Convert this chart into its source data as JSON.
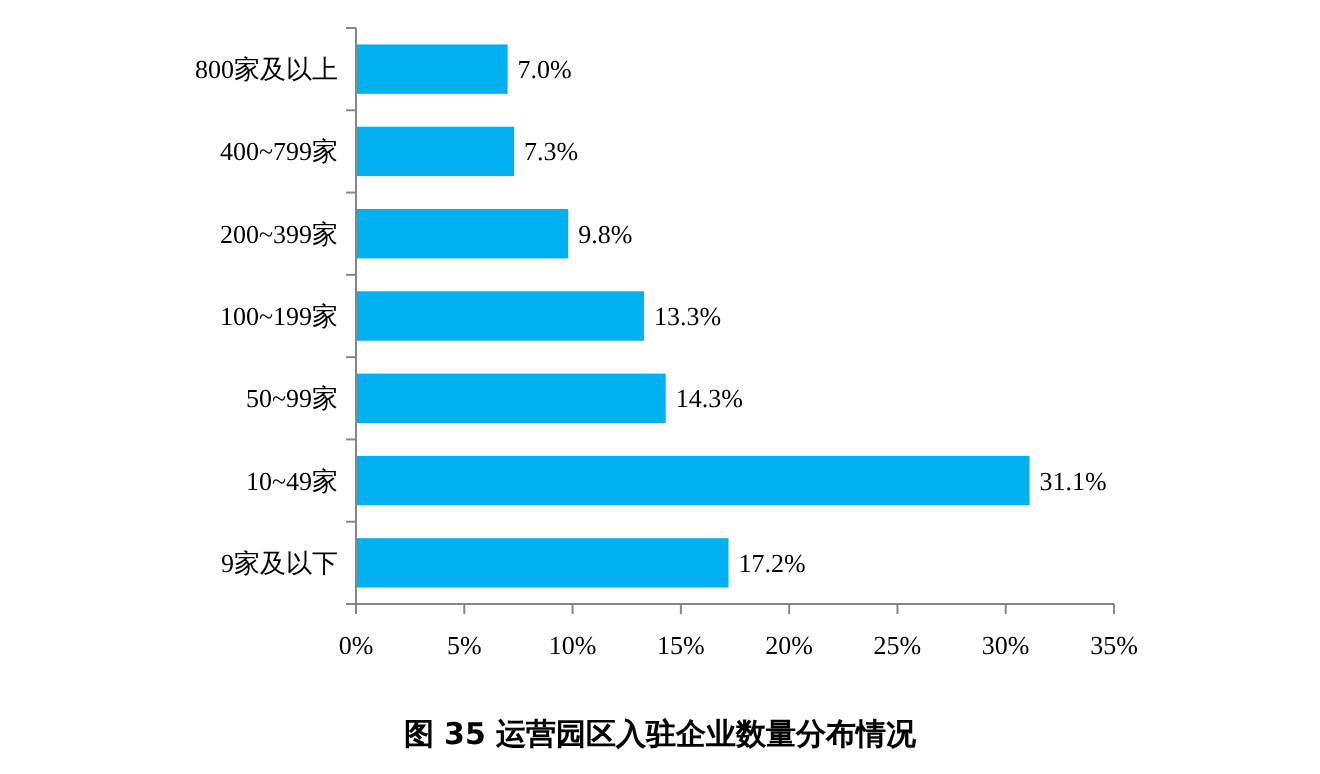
{
  "chart_data": {
    "type": "bar",
    "orientation": "horizontal",
    "title": "图 35 运营园区入驻企业数量分布情况",
    "categories": [
      "800家及以上",
      "400~799家",
      "200~399家",
      "100~199家",
      "50~99家",
      "10~49家",
      "9家及以下"
    ],
    "values": [
      7.0,
      7.3,
      9.8,
      13.3,
      14.3,
      31.1,
      17.2
    ],
    "value_labels": [
      "7.0%",
      "7.3%",
      "9.8%",
      "13.3%",
      "14.3%",
      "31.1%",
      "17.2%"
    ],
    "color": "#00b0f0",
    "xlim": [
      0,
      35
    ],
    "xticks": [
      {
        "value": 0,
        "label": "0%"
      },
      {
        "value": 5,
        "label": "5%"
      },
      {
        "value": 10,
        "label": "10%"
      },
      {
        "value": 15,
        "label": "15%"
      },
      {
        "value": 20,
        "label": "20%"
      },
      {
        "value": 25,
        "label": "25%"
      },
      {
        "value": 30,
        "label": "30%"
      },
      {
        "value": 35,
        "label": "35%"
      }
    ],
    "grid": false
  }
}
